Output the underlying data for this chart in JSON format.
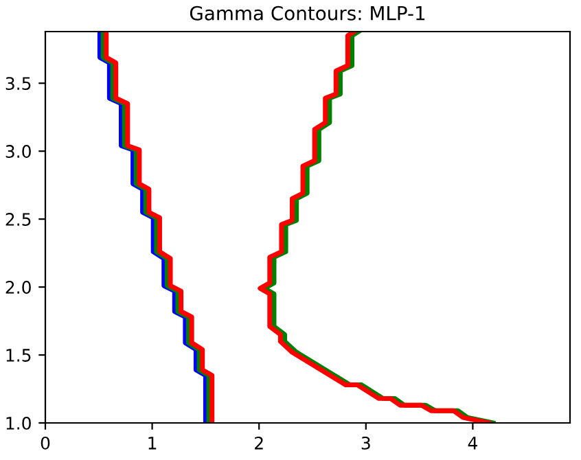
{
  "chart_data": {
    "type": "line",
    "title": "Gamma Contours: MLP-1",
    "xlim": [
      0,
      4.91
    ],
    "ylim": [
      1.0,
      3.88
    ],
    "xticks": [
      0,
      1,
      2,
      3,
      4
    ],
    "yticks": [
      {
        "value": 1.0,
        "label": "1.0"
      },
      {
        "value": 1.5,
        "label": "1.5"
      },
      {
        "value": 2.0,
        "label": "2.0"
      },
      {
        "value": 2.5,
        "label": "2.5"
      },
      {
        "value": 3.0,
        "label": "3.0"
      },
      {
        "value": 3.5,
        "label": "3.5"
      }
    ],
    "grid": false,
    "marker": "none",
    "line_style": "solid",
    "series": [
      {
        "color": "#0000ff",
        "x": [
          0.51,
          0.51,
          0.6,
          0.6,
          0.71,
          0.71,
          0.82,
          0.82,
          0.91,
          0.91,
          1.01,
          1.01,
          1.11,
          1.11,
          1.21,
          1.21,
          1.31,
          1.31,
          1.41,
          1.41,
          1.5,
          1.5
        ],
        "values": [
          3.88,
          3.69,
          3.65,
          3.39,
          3.35,
          3.04,
          3.01,
          2.76,
          2.72,
          2.55,
          2.51,
          2.26,
          2.21,
          2.01,
          1.97,
          1.82,
          1.78,
          1.59,
          1.54,
          1.39,
          1.35,
          1.0
        ]
      },
      {
        "color": "#008000",
        "x": [
          0.54,
          0.54,
          0.63,
          0.63,
          0.74,
          0.74,
          0.85,
          0.85,
          0.94,
          0.94,
          1.04,
          1.04,
          1.14,
          1.14,
          1.24,
          1.24,
          1.34,
          1.34,
          1.44,
          1.44,
          1.53,
          1.53
        ],
        "values": [
          3.88,
          3.69,
          3.65,
          3.39,
          3.35,
          3.04,
          3.01,
          2.76,
          2.72,
          2.55,
          2.51,
          2.26,
          2.21,
          2.01,
          1.97,
          1.82,
          1.78,
          1.59,
          1.54,
          1.39,
          1.35,
          1.0
        ]
      },
      {
        "color": "#ff0000",
        "x": [
          0.57,
          0.57,
          0.66,
          0.66,
          0.77,
          0.77,
          0.88,
          0.88,
          0.97,
          0.97,
          1.07,
          1.07,
          1.17,
          1.17,
          1.27,
          1.27,
          1.37,
          1.37,
          1.47,
          1.47,
          1.56,
          1.56
        ],
        "values": [
          3.88,
          3.69,
          3.65,
          3.39,
          3.35,
          3.04,
          3.01,
          2.76,
          2.72,
          2.55,
          2.51,
          2.26,
          2.21,
          2.01,
          1.97,
          1.82,
          1.78,
          1.59,
          1.54,
          1.39,
          1.35,
          1.0
        ]
      },
      {
        "color": "#008000",
        "x": [
          2.93,
          2.87,
          2.87,
          2.76,
          2.76,
          2.66,
          2.66,
          2.56,
          2.56,
          2.45,
          2.45,
          2.35,
          2.35,
          2.25,
          2.25,
          2.14,
          2.14,
          2.05,
          2.14,
          2.14,
          2.24,
          2.24,
          2.35,
          2.85,
          2.96,
          3.16,
          3.27,
          3.36,
          3.56,
          3.65,
          3.86,
          3.95,
          4.19
        ],
        "values": [
          3.88,
          3.85,
          3.63,
          3.59,
          3.42,
          3.39,
          3.21,
          3.16,
          2.93,
          2.89,
          2.69,
          2.65,
          2.49,
          2.46,
          2.26,
          2.22,
          2.03,
          1.99,
          1.95,
          1.71,
          1.65,
          1.6,
          1.52,
          1.28,
          1.28,
          1.18,
          1.18,
          1.13,
          1.13,
          1.09,
          1.09,
          1.04,
          1.0
        ]
      },
      {
        "color": "#ff0000",
        "x": [
          2.89,
          2.83,
          2.83,
          2.72,
          2.72,
          2.62,
          2.62,
          2.52,
          2.52,
          2.41,
          2.41,
          2.31,
          2.31,
          2.21,
          2.21,
          2.1,
          2.1,
          2.01,
          2.1,
          2.1,
          2.2,
          2.2,
          2.31,
          2.81,
          2.92,
          3.12,
          3.23,
          3.32,
          3.52,
          3.61,
          3.82,
          3.91,
          4.15
        ],
        "values": [
          3.88,
          3.85,
          3.63,
          3.59,
          3.42,
          3.39,
          3.21,
          3.16,
          2.93,
          2.89,
          2.69,
          2.65,
          2.49,
          2.46,
          2.26,
          2.22,
          2.03,
          1.99,
          1.95,
          1.71,
          1.65,
          1.6,
          1.52,
          1.28,
          1.28,
          1.18,
          1.18,
          1.13,
          1.13,
          1.09,
          1.09,
          1.04,
          1.0
        ]
      }
    ]
  }
}
